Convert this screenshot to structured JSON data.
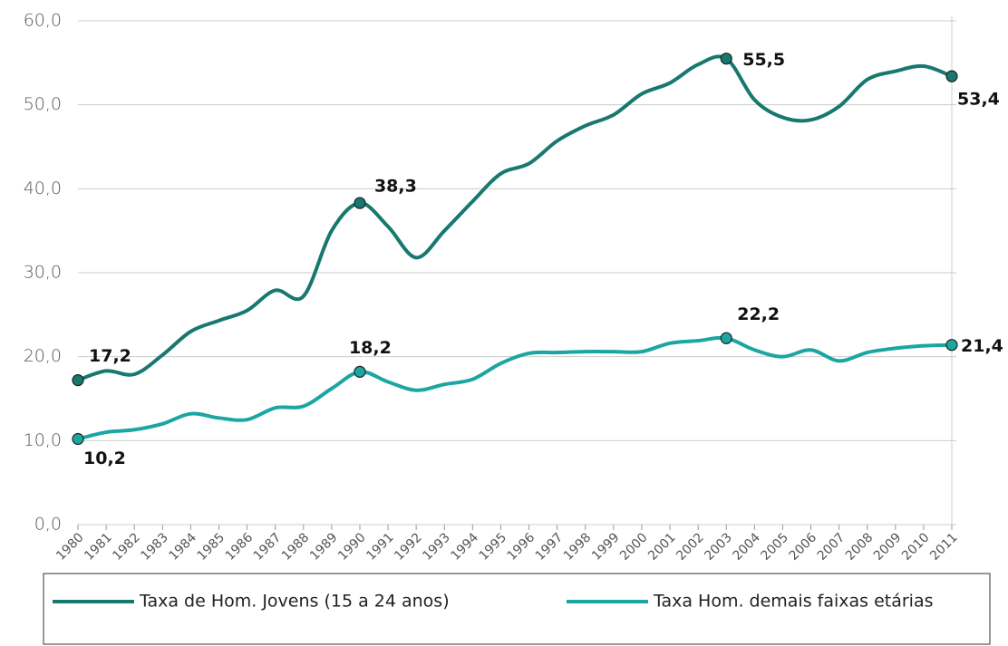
{
  "chart_data": {
    "type": "line",
    "categories": [
      "1980",
      "1981",
      "1982",
      "1983",
      "1984",
      "1985",
      "1986",
      "1987",
      "1988",
      "1989",
      "1990",
      "1991",
      "1992",
      "1993",
      "1994",
      "1995",
      "1996",
      "1997",
      "1998",
      "1999",
      "2000",
      "2001",
      "2002",
      "2003",
      "2004",
      "2005",
      "2006",
      "2007",
      "2008",
      "2009",
      "2010",
      "2011"
    ],
    "series": [
      {
        "name": "Taxa de Hom. Jovens (15 a 24 anos)",
        "color": "#17786f",
        "values": [
          17.2,
          18.3,
          17.9,
          20.2,
          23,
          24.3,
          25.5,
          27.9,
          27.2,
          35,
          38.3,
          35.5,
          31.8,
          35,
          38.5,
          41.8,
          43,
          45.7,
          47.5,
          48.8,
          51.3,
          52.6,
          54.8,
          55.5,
          50.6,
          48.5,
          48.2,
          49.8,
          53,
          54,
          54.6,
          53.4
        ],
        "value_labels": [
          "17,2",
          null,
          null,
          null,
          null,
          null,
          null,
          null,
          null,
          null,
          "38,3",
          null,
          null,
          null,
          null,
          null,
          null,
          null,
          null,
          null,
          null,
          null,
          null,
          "55,5",
          null,
          null,
          null,
          null,
          null,
          null,
          null,
          "53,4"
        ]
      },
      {
        "name": "Taxa Hom. demais faixas etárias",
        "color": "#1ba6a1",
        "values": [
          10.2,
          11,
          11.3,
          12,
          13.2,
          12.7,
          12.5,
          13.9,
          14.1,
          16.2,
          18.2,
          17,
          16,
          16.7,
          17.3,
          19.2,
          20.4,
          20.5,
          20.6,
          20.6,
          20.6,
          21.6,
          21.9,
          22.2,
          20.8,
          20,
          20.8,
          19.5,
          20.5,
          21,
          21.3,
          21.4
        ],
        "value_labels": [
          "10,2",
          null,
          null,
          null,
          null,
          null,
          null,
          null,
          null,
          null,
          "18,2",
          null,
          null,
          null,
          null,
          null,
          null,
          null,
          null,
          null,
          null,
          null,
          null,
          "22,2",
          null,
          null,
          null,
          null,
          null,
          null,
          null,
          "21,4"
        ]
      }
    ],
    "ylim": [
      0,
      60
    ],
    "yticks": [
      {
        "value": 0,
        "label": "0,0"
      },
      {
        "value": 10,
        "label": "10,0"
      },
      {
        "value": 20,
        "label": "20,0"
      },
      {
        "value": 30,
        "label": "30,0"
      },
      {
        "value": 40,
        "label": "40,0"
      },
      {
        "value": 50,
        "label": "50,0"
      },
      {
        "value": 60,
        "label": "60,0"
      }
    ],
    "grid": true
  }
}
